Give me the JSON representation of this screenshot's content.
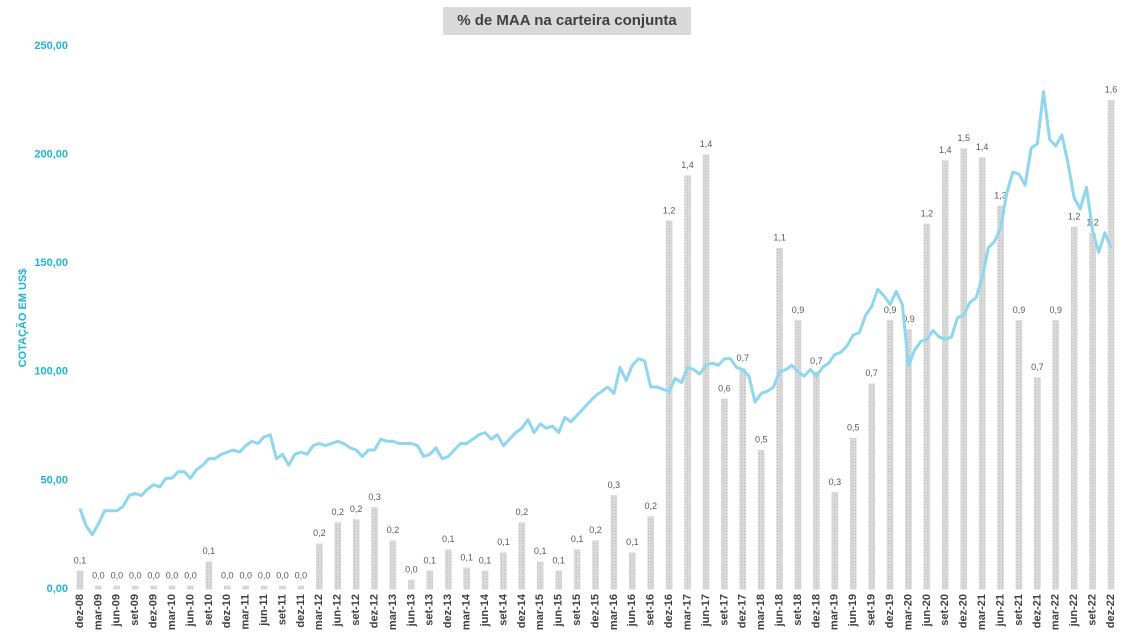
{
  "chart_data": {
    "type": "combo",
    "title": "% de MAA na carteira conjunta",
    "y_label": "COTAÇÃO EM US$",
    "ylim": [
      0,
      250
    ],
    "yticks": [
      {
        "value": 0,
        "label": "0,00"
      },
      {
        "value": 50,
        "label": "50,00"
      },
      {
        "value": 100,
        "label": "100,00"
      },
      {
        "value": 150,
        "label": "150,00"
      },
      {
        "value": 200,
        "label": "200,00"
      },
      {
        "value": 250,
        "label": "250,00"
      }
    ],
    "y2lim": [
      0,
      1.8
    ],
    "categories": [
      "dez-08",
      null,
      null,
      "mar-09",
      null,
      null,
      "jun-09",
      null,
      null,
      "set-09",
      null,
      null,
      "dez-09",
      null,
      null,
      "mar-10",
      null,
      null,
      "jun-10",
      null,
      null,
      "set-10",
      null,
      null,
      "dez-10",
      null,
      null,
      "mar-11",
      null,
      null,
      "jun-11",
      null,
      null,
      "set-11",
      null,
      null,
      "dez-11",
      null,
      null,
      "mar-12",
      null,
      null,
      "jun-12",
      null,
      null,
      "set-12",
      null,
      null,
      "dez-12",
      null,
      null,
      "mar-13",
      null,
      null,
      "jun-13",
      null,
      null,
      "set-13",
      null,
      null,
      "dez-13",
      null,
      null,
      "mar-14",
      null,
      null,
      "jun-14",
      null,
      null,
      "set-14",
      null,
      null,
      "dez-14",
      null,
      null,
      "mar-15",
      null,
      null,
      "jun-15",
      null,
      null,
      "set-15",
      null,
      null,
      "dez-15",
      null,
      null,
      "mar-16",
      null,
      null,
      "jun-16",
      null,
      null,
      "set-16",
      null,
      null,
      "dez-16",
      null,
      null,
      "mar-17",
      null,
      null,
      "jun-17",
      null,
      null,
      "set-17",
      null,
      null,
      "dez-17",
      null,
      null,
      "mar-18",
      null,
      null,
      "jun-18",
      null,
      null,
      "set-18",
      null,
      null,
      "dez-18",
      null,
      null,
      "mar-19",
      null,
      null,
      "jun-19",
      null,
      null,
      "set-19",
      null,
      null,
      "dez-19",
      null,
      null,
      "mar-20",
      null,
      null,
      "jun-20",
      null,
      null,
      "set-20",
      null,
      null,
      "dez-20",
      null,
      null,
      "mar-21",
      null,
      null,
      "jun-21",
      null,
      null,
      "set-21",
      null,
      null,
      "dez-21",
      null,
      null,
      "mar-22",
      null,
      null,
      "jun-22",
      null,
      null,
      "set-22",
      null,
      null,
      "dez-22"
    ],
    "series": [
      {
        "type": "bar",
        "axis": "y2",
        "color": "#d0d0d0",
        "values": [
          0.06,
          null,
          null,
          0.01,
          null,
          null,
          0.01,
          null,
          null,
          0.01,
          null,
          null,
          0.01,
          null,
          null,
          0.01,
          null,
          null,
          0.01,
          null,
          null,
          0.09,
          null,
          null,
          0.01,
          null,
          null,
          0.01,
          null,
          null,
          0.01,
          null,
          null,
          0.01,
          null,
          null,
          0.01,
          null,
          null,
          0.15,
          null,
          null,
          0.22,
          null,
          null,
          0.23,
          null,
          null,
          0.27,
          null,
          null,
          0.16,
          null,
          null,
          0.03,
          null,
          null,
          0.06,
          null,
          null,
          0.13,
          null,
          null,
          0.07,
          null,
          null,
          0.06,
          null,
          null,
          0.12,
          null,
          null,
          0.22,
          null,
          null,
          0.09,
          null,
          null,
          0.06,
          null,
          null,
          0.13,
          null,
          null,
          0.16,
          null,
          null,
          0.31,
          null,
          null,
          0.12,
          null,
          null,
          0.24,
          null,
          null,
          1.22,
          null,
          null,
          1.37,
          null,
          null,
          1.44,
          null,
          null,
          0.63,
          null,
          null,
          0.73,
          null,
          null,
          0.46,
          null,
          null,
          1.13,
          null,
          null,
          0.89,
          null,
          null,
          0.72,
          null,
          null,
          0.32,
          null,
          null,
          0.5,
          null,
          null,
          0.68,
          null,
          null,
          0.89,
          null,
          null,
          0.86,
          null,
          null,
          1.21,
          null,
          null,
          1.42,
          null,
          null,
          1.46,
          null,
          null,
          1.43,
          null,
          null,
          1.27,
          null,
          null,
          0.89,
          null,
          null,
          0.7,
          null,
          null,
          0.89,
          null,
          null,
          1.2,
          null,
          null,
          1.18,
          null,
          null,
          1.62
        ],
        "value_labels": [
          "0,1",
          null,
          null,
          "0,0",
          null,
          null,
          "0,0",
          null,
          null,
          "0,0",
          null,
          null,
          "0,0",
          null,
          null,
          "0,0",
          null,
          null,
          "0,0",
          null,
          null,
          "0,1",
          null,
          null,
          "0,0",
          null,
          null,
          "0,0",
          null,
          null,
          "0,0",
          null,
          null,
          "0,0",
          null,
          null,
          "0,0",
          null,
          null,
          "0,2",
          null,
          null,
          "0,2",
          null,
          null,
          "0,2",
          null,
          null,
          "0,3",
          null,
          null,
          "0,2",
          null,
          null,
          "0,0",
          null,
          null,
          "0,1",
          null,
          null,
          "0,1",
          null,
          null,
          "0,1",
          null,
          null,
          "0,1",
          null,
          null,
          "0,1",
          null,
          null,
          "0,2",
          null,
          null,
          "0,1",
          null,
          null,
          "0,1",
          null,
          null,
          "0,1",
          null,
          null,
          "0,2",
          null,
          null,
          "0,3",
          null,
          null,
          "0,1",
          null,
          null,
          "0,2",
          null,
          null,
          "1,2",
          null,
          null,
          "1,4",
          null,
          null,
          "1,4",
          null,
          null,
          "0,6",
          null,
          null,
          "0,7",
          null,
          null,
          "0,5",
          null,
          null,
          "1,1",
          null,
          null,
          "0,9",
          null,
          null,
          "0,7",
          null,
          null,
          "0,3",
          null,
          null,
          "0,5",
          null,
          null,
          "0,7",
          null,
          null,
          "0,9",
          null,
          null,
          "0,9",
          null,
          null,
          "1,2",
          null,
          null,
          "1,4",
          null,
          null,
          "1,5",
          null,
          null,
          "1,4",
          null,
          null,
          "1,3",
          null,
          null,
          "0,9",
          null,
          null,
          "0,7",
          null,
          null,
          "0,9",
          null,
          null,
          "1,2",
          null,
          null,
          "1,2",
          null,
          null,
          "1,6"
        ]
      },
      {
        "type": "line",
        "axis": "y",
        "color": "#8fd6ef",
        "values": [
          37,
          29,
          25,
          30,
          36,
          36,
          36,
          38,
          43,
          44,
          43,
          46,
          48,
          47,
          51,
          51,
          54,
          54,
          51,
          55,
          57,
          60,
          60,
          62,
          63,
          64,
          63,
          66,
          68,
          67,
          70,
          71,
          60,
          62,
          57,
          62,
          63,
          62,
          66,
          67,
          66,
          67,
          68,
          67,
          65,
          64,
          61,
          64,
          64,
          69,
          68,
          68,
          67,
          67,
          67,
          66,
          61,
          62,
          65,
          60,
          61,
          64,
          67,
          67,
          69,
          71,
          72,
          69,
          71,
          66,
          69,
          72,
          74,
          78,
          72,
          76,
          74,
          75,
          72,
          79,
          77,
          80,
          83,
          86,
          89,
          91,
          93,
          90,
          102,
          96,
          103,
          106,
          105,
          93,
          93,
          92,
          91,
          97,
          95,
          102,
          101,
          99,
          103,
          104,
          103,
          106,
          106,
          102,
          101,
          98,
          86,
          90,
          91,
          93,
          100,
          101,
          103,
          100,
          98,
          101,
          98,
          102,
          104,
          108,
          109,
          112,
          117,
          118,
          126,
          130,
          138,
          135,
          131,
          137,
          131,
          103,
          110,
          114,
          115,
          119,
          116,
          115,
          116,
          125,
          126,
          132,
          134,
          143,
          157,
          160,
          166,
          182,
          192,
          191,
          186,
          203,
          205,
          229,
          207,
          204,
          209,
          196,
          180,
          175,
          185,
          165,
          155,
          164,
          157
        ]
      }
    ]
  }
}
